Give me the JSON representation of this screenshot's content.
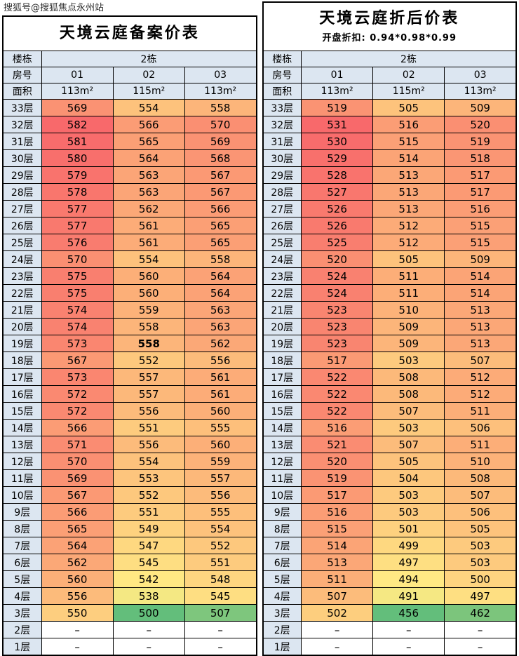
{
  "watermark": "搜狐号@搜狐焦点永州站",
  "colors": {
    "header_bg": "#dce6f1",
    "empty_bg": "#ffffff",
    "scale_min": "#63be7b",
    "scale_mid": "#ffeb84",
    "scale_max": "#f8696b",
    "border": "#000000"
  },
  "tables": [
    {
      "title": "天境云庭备案价表",
      "subtitle": "",
      "header": {
        "building_label": "楼栋",
        "building_value": "2栋",
        "room_label": "房号",
        "rooms": [
          "01",
          "02",
          "03"
        ],
        "area_label": "面积",
        "areas": [
          "113m²",
          "115m²",
          "113m²"
        ]
      },
      "floors": [
        "33层",
        "32层",
        "31层",
        "30层",
        "29层",
        "28层",
        "27层",
        "26层",
        "25层",
        "24层",
        "23层",
        "22层",
        "21层",
        "20层",
        "19层",
        "18层",
        "17层",
        "16层",
        "15层",
        "14层",
        "13层",
        "12层",
        "11层",
        "10层",
        "9层",
        "8层",
        "7层",
        "6层",
        "5层",
        "4层",
        "3层",
        "2层",
        "1层"
      ],
      "rows": [
        [
          569,
          554,
          558
        ],
        [
          582,
          566,
          570
        ],
        [
          581,
          565,
          569
        ],
        [
          580,
          564,
          568
        ],
        [
          579,
          563,
          567
        ],
        [
          578,
          563,
          567
        ],
        [
          577,
          562,
          566
        ],
        [
          577,
          561,
          565
        ],
        [
          576,
          561,
          565
        ],
        [
          570,
          554,
          558
        ],
        [
          575,
          560,
          564
        ],
        [
          575,
          560,
          564
        ],
        [
          574,
          559,
          563
        ],
        [
          574,
          558,
          563
        ],
        [
          573,
          558,
          562
        ],
        [
          567,
          552,
          556
        ],
        [
          573,
          557,
          561
        ],
        [
          572,
          557,
          561
        ],
        [
          572,
          556,
          560
        ],
        [
          566,
          551,
          555
        ],
        [
          571,
          556,
          560
        ],
        [
          570,
          554,
          559
        ],
        [
          569,
          553,
          557
        ],
        [
          567,
          552,
          556
        ],
        [
          566,
          551,
          555
        ],
        [
          565,
          549,
          554
        ],
        [
          564,
          547,
          552
        ],
        [
          562,
          545,
          551
        ],
        [
          560,
          542,
          548
        ],
        [
          556,
          538,
          545
        ],
        [
          550,
          500,
          507
        ],
        [
          "–",
          "–",
          "–"
        ],
        [
          "–",
          "–",
          "–"
        ]
      ],
      "scale": {
        "min": 500,
        "mid": 541,
        "max": 582
      },
      "bold_cell": {
        "row": 14,
        "col": 1
      }
    },
    {
      "title": "天境云庭折后价表",
      "subtitle": "开盘折扣: 0.94*0.98*0.99",
      "header": {
        "building_label": "楼栋",
        "building_value": "2栋",
        "room_label": "房号",
        "rooms": [
          "01",
          "02",
          "03"
        ],
        "area_label": "面积",
        "areas": [
          "113m²",
          "115m²",
          "113m²"
        ]
      },
      "floors": [
        "33层",
        "32层",
        "31层",
        "30层",
        "29层",
        "28层",
        "27层",
        "26层",
        "25层",
        "24层",
        "23层",
        "22层",
        "21层",
        "20层",
        "19层",
        "18层",
        "17层",
        "16层",
        "15层",
        "14层",
        "13层",
        "12层",
        "11层",
        "10层",
        "9层",
        "8层",
        "7层",
        "6层",
        "5层",
        "4层",
        "3层",
        "2层",
        "1层"
      ],
      "rows": [
        [
          519,
          505,
          509
        ],
        [
          531,
          516,
          520
        ],
        [
          530,
          515,
          519
        ],
        [
          529,
          514,
          518
        ],
        [
          528,
          513,
          517
        ],
        [
          527,
          513,
          517
        ],
        [
          526,
          513,
          516
        ],
        [
          526,
          512,
          515
        ],
        [
          525,
          512,
          515
        ],
        [
          520,
          505,
          509
        ],
        [
          524,
          511,
          514
        ],
        [
          524,
          511,
          514
        ],
        [
          523,
          510,
          513
        ],
        [
          523,
          509,
          513
        ],
        [
          523,
          509,
          513
        ],
        [
          517,
          503,
          507
        ],
        [
          522,
          508,
          512
        ],
        [
          522,
          508,
          512
        ],
        [
          522,
          507,
          511
        ],
        [
          516,
          503,
          506
        ],
        [
          521,
          507,
          511
        ],
        [
          520,
          505,
          510
        ],
        [
          519,
          504,
          508
        ],
        [
          517,
          503,
          507
        ],
        [
          516,
          503,
          506
        ],
        [
          515,
          501,
          505
        ],
        [
          514,
          499,
          503
        ],
        [
          513,
          497,
          503
        ],
        [
          511,
          494,
          500
        ],
        [
          507,
          491,
          497
        ],
        [
          502,
          456,
          462
        ],
        [
          "–",
          "–",
          "–"
        ],
        [
          "–",
          "–",
          "–"
        ]
      ],
      "scale": {
        "min": 456,
        "mid": 493.5,
        "max": 531
      },
      "bold_cell": null
    }
  ]
}
